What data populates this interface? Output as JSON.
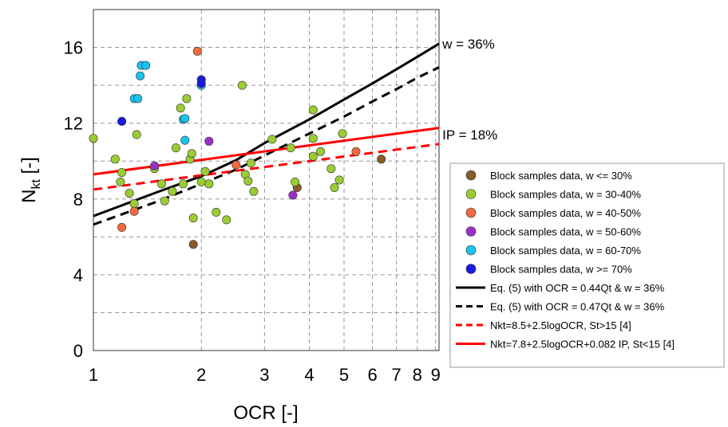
{
  "chart_data": {
    "type": "scatter",
    "xlabel": "OCR [-]",
    "ylabel_main": "N",
    "ylabel_sub": "kt",
    "ylabel_suffix": " [-]",
    "xscale": "log",
    "xlim": [
      1,
      9.2
    ],
    "ylim": [
      0,
      18
    ],
    "x_ticks": [
      1,
      2,
      3,
      4,
      5,
      6,
      7,
      8,
      9
    ],
    "x_tick_labels": [
      "1",
      "2",
      "3",
      "4",
      "5",
      "6",
      "7",
      "8",
      "9"
    ],
    "y_ticks": [
      0,
      4,
      8,
      12,
      16
    ],
    "y_tick_labels": [
      "0",
      "4",
      "8",
      "12",
      "16"
    ],
    "grid": true,
    "legend_position": "right",
    "annotations": [
      {
        "text": "w = 36%",
        "x": 9.3,
        "y": 16.2
      },
      {
        "text": "IP = 18%",
        "x": 9.3,
        "y": 11.4
      }
    ],
    "scatter_series": [
      {
        "name": "Block samples data, w <= 30%",
        "color": "#8B5A2B",
        "points": [
          [
            1.9,
            5.6
          ],
          [
            3.7,
            8.6
          ],
          [
            6.35,
            10.1
          ]
        ]
      },
      {
        "name": "Block samples data, w = 30-40%",
        "color": "#9ACD32",
        "points": [
          [
            1.0,
            11.2
          ],
          [
            1.15,
            10.1
          ],
          [
            1.2,
            9.4
          ],
          [
            1.19,
            8.9
          ],
          [
            1.26,
            8.3
          ],
          [
            1.3,
            7.75
          ],
          [
            1.32,
            11.4
          ],
          [
            1.48,
            9.6
          ],
          [
            1.55,
            8.8
          ],
          [
            1.58,
            7.9
          ],
          [
            1.66,
            8.4
          ],
          [
            1.7,
            10.7
          ],
          [
            1.75,
            12.8
          ],
          [
            1.78,
            8.8
          ],
          [
            1.82,
            13.3
          ],
          [
            1.86,
            10.1
          ],
          [
            1.88,
            10.4
          ],
          [
            1.9,
            7.0
          ],
          [
            2.0,
            8.9
          ],
          [
            2.05,
            9.45
          ],
          [
            2.1,
            8.8
          ],
          [
            2.2,
            7.3
          ],
          [
            2.35,
            6.9
          ],
          [
            2.6,
            14.0
          ],
          [
            2.65,
            9.3
          ],
          [
            2.7,
            8.95
          ],
          [
            2.75,
            9.9
          ],
          [
            2.8,
            8.4
          ],
          [
            3.15,
            11.15
          ],
          [
            3.55,
            10.7
          ],
          [
            3.65,
            8.9
          ],
          [
            4.1,
            12.7
          ],
          [
            4.1,
            11.2
          ],
          [
            4.1,
            10.25
          ],
          [
            4.3,
            10.5
          ],
          [
            4.6,
            9.6
          ],
          [
            4.7,
            8.6
          ],
          [
            4.85,
            9.0
          ],
          [
            4.95,
            11.45
          ]
        ]
      },
      {
        "name": "Block samples data, w = 40-50%",
        "color": "#F26A3D",
        "points": [
          [
            1.2,
            6.5
          ],
          [
            1.3,
            7.35
          ],
          [
            1.95,
            15.8
          ],
          [
            2.5,
            9.8
          ],
          [
            5.4,
            10.5
          ]
        ]
      },
      {
        "name": "Block samples data, w = 50-60%",
        "color": "#9B30C8",
        "points": [
          [
            1.48,
            9.75
          ],
          [
            2.1,
            11.05
          ],
          [
            3.6,
            8.2
          ]
        ]
      },
      {
        "name": "Block samples data, w = 60-70%",
        "color": "#19C3F0",
        "points": [
          [
            1.3,
            13.3
          ],
          [
            1.33,
            13.3
          ],
          [
            1.35,
            14.5
          ],
          [
            1.36,
            15.05
          ],
          [
            1.4,
            15.05
          ],
          [
            1.78,
            12.2
          ],
          [
            1.8,
            12.25
          ],
          [
            1.8,
            11.1
          ],
          [
            2.0,
            14.0
          ]
        ]
      },
      {
        "name": "Block samples data, w >= 70%",
        "color": "#1A1AE0",
        "points": [
          [
            1.2,
            12.1
          ],
          [
            2.0,
            14.3
          ],
          [
            2.0,
            14.1
          ]
        ]
      }
    ],
    "line_series": [
      {
        "name": "Eq. (5) with OCR = 0.44Qt & w = 36%",
        "color": "#000000",
        "style": "solid",
        "points": [
          [
            1,
            7.1
          ],
          [
            1.5,
            8.35
          ],
          [
            2,
            9.2
          ],
          [
            2.5,
            10.05
          ],
          [
            3,
            10.95
          ],
          [
            4,
            12.2
          ],
          [
            5,
            13.25
          ],
          [
            6,
            14.1
          ],
          [
            7,
            14.85
          ],
          [
            8,
            15.5
          ],
          [
            9.2,
            16.2
          ]
        ]
      },
      {
        "name": "Eq. (5) with OCR = 0.47Qt & w = 36%",
        "color": "#000000",
        "style": "dashed",
        "points": [
          [
            1,
            6.65
          ],
          [
            1.5,
            7.85
          ],
          [
            2,
            8.8
          ],
          [
            2.5,
            9.55
          ],
          [
            3,
            10.3
          ],
          [
            4,
            11.45
          ],
          [
            5,
            12.35
          ],
          [
            6,
            13.15
          ],
          [
            7,
            13.8
          ],
          [
            8,
            14.4
          ],
          [
            9.2,
            14.95
          ]
        ]
      },
      {
        "name": "Nkt=8.5+2.5logOCR, St>15 [4]",
        "color": "#FF0000",
        "style": "dashed",
        "points": [
          [
            1,
            8.5
          ],
          [
            9.2,
            10.9
          ]
        ]
      },
      {
        "name": "Nkt=7.8+2.5logOCR+0.082 IP, St<15 [4]",
        "color": "#FF0000",
        "style": "solid",
        "points": [
          [
            1,
            9.3
          ],
          [
            9.2,
            11.75
          ]
        ]
      }
    ]
  }
}
